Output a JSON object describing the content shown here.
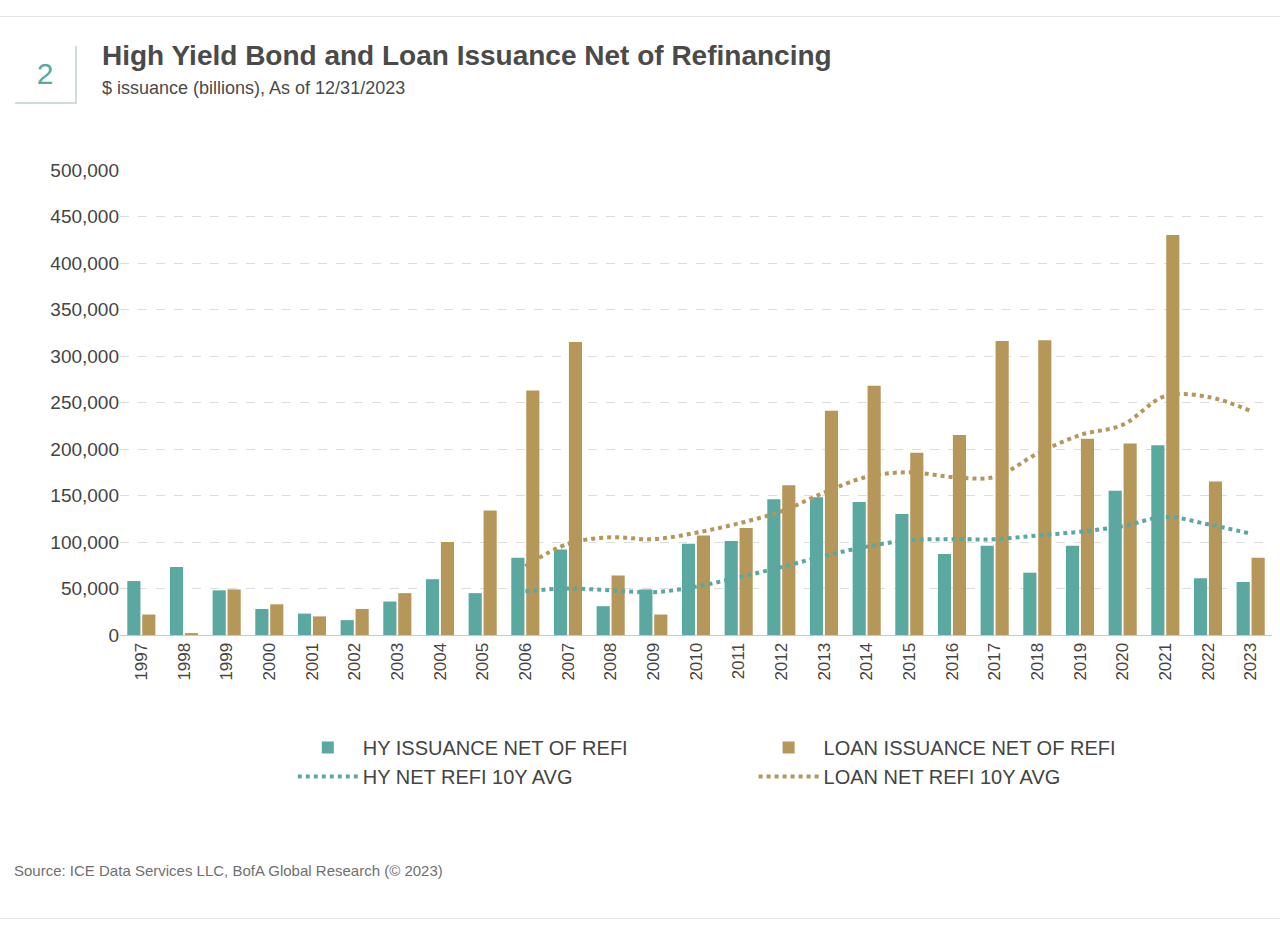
{
  "page": {
    "figure_number": "2"
  },
  "chart_data": {
    "type": "bar",
    "title": "High Yield Bond and Loan Issuance Net of Refinancing",
    "subtitle": "$ issuance (billions), As of 12/31/2023",
    "source": "Source: ICE Data Services LLC, BofA Global Research (© 2023)",
    "categories": [
      "1997",
      "1998",
      "1999",
      "2000",
      "2001",
      "2002",
      "2003",
      "2004",
      "2005",
      "2006",
      "2007",
      "2008",
      "2009",
      "2010",
      "2011",
      "2012",
      "2013",
      "2014",
      "2015",
      "2016",
      "2017",
      "2018",
      "2019",
      "2020",
      "2021",
      "2022",
      "2023"
    ],
    "series": [
      {
        "name": "HY ISSUANCE NET OF REFI",
        "type": "bar",
        "color": "#5aa8a0",
        "values": [
          58000,
          73000,
          48000,
          28000,
          23000,
          16000,
          36000,
          60000,
          45000,
          83000,
          92000,
          31000,
          49000,
          98000,
          101000,
          146000,
          148000,
          143000,
          130000,
          87000,
          96000,
          67000,
          96000,
          155000,
          204000,
          61000,
          57000
        ]
      },
      {
        "name": "LOAN ISSUANCE NET OF REFI",
        "type": "bar",
        "color": "#b5975a",
        "values": [
          22000,
          2000,
          49000,
          33000,
          20000,
          28000,
          45000,
          100000,
          134000,
          263000,
          315000,
          64000,
          22000,
          107000,
          115000,
          161000,
          241000,
          268000,
          196000,
          215000,
          316000,
          317000,
          211000,
          206000,
          430000,
          165000,
          83000
        ]
      },
      {
        "name": "HY NET REFI 10Y AVG",
        "type": "line",
        "line_style": "dotted",
        "color": "#5aa8a0",
        "values": [
          null,
          null,
          null,
          null,
          null,
          null,
          null,
          null,
          null,
          47000,
          50000,
          48000,
          46000,
          52000,
          62000,
          73000,
          85000,
          95000,
          102000,
          103000,
          103000,
          107000,
          111000,
          117000,
          127000,
          119000,
          109000
        ]
      },
      {
        "name": "LOAN NET REFI 10Y AVG",
        "type": "line",
        "line_style": "dotted",
        "color": "#b5975a",
        "values": [
          null,
          null,
          null,
          null,
          null,
          null,
          null,
          null,
          null,
          74000,
          98000,
          105000,
          103000,
          110000,
          120000,
          133000,
          153000,
          170000,
          175000,
          170000,
          170000,
          195000,
          215000,
          226000,
          257000,
          256000,
          241000
        ]
      }
    ],
    "ylim": [
      0,
      500000
    ],
    "yticks": [
      0,
      {
        "value": 50000,
        "label": "50,000"
      },
      {
        "value": 100000,
        "label": "100,000"
      },
      {
        "value": 150000,
        "label": "150,000"
      },
      {
        "value": 200000,
        "label": "200,000"
      },
      {
        "value": 250000,
        "label": "250,000"
      },
      {
        "value": 300000,
        "label": "300,000"
      },
      {
        "value": 350000,
        "label": "350,000"
      },
      {
        "value": 400000,
        "label": "400,000"
      },
      {
        "value": 450000,
        "label": "450,000"
      },
      {
        "value": 500000,
        "label": "500,000"
      }
    ],
    "grid": true,
    "legend": "bottom"
  }
}
